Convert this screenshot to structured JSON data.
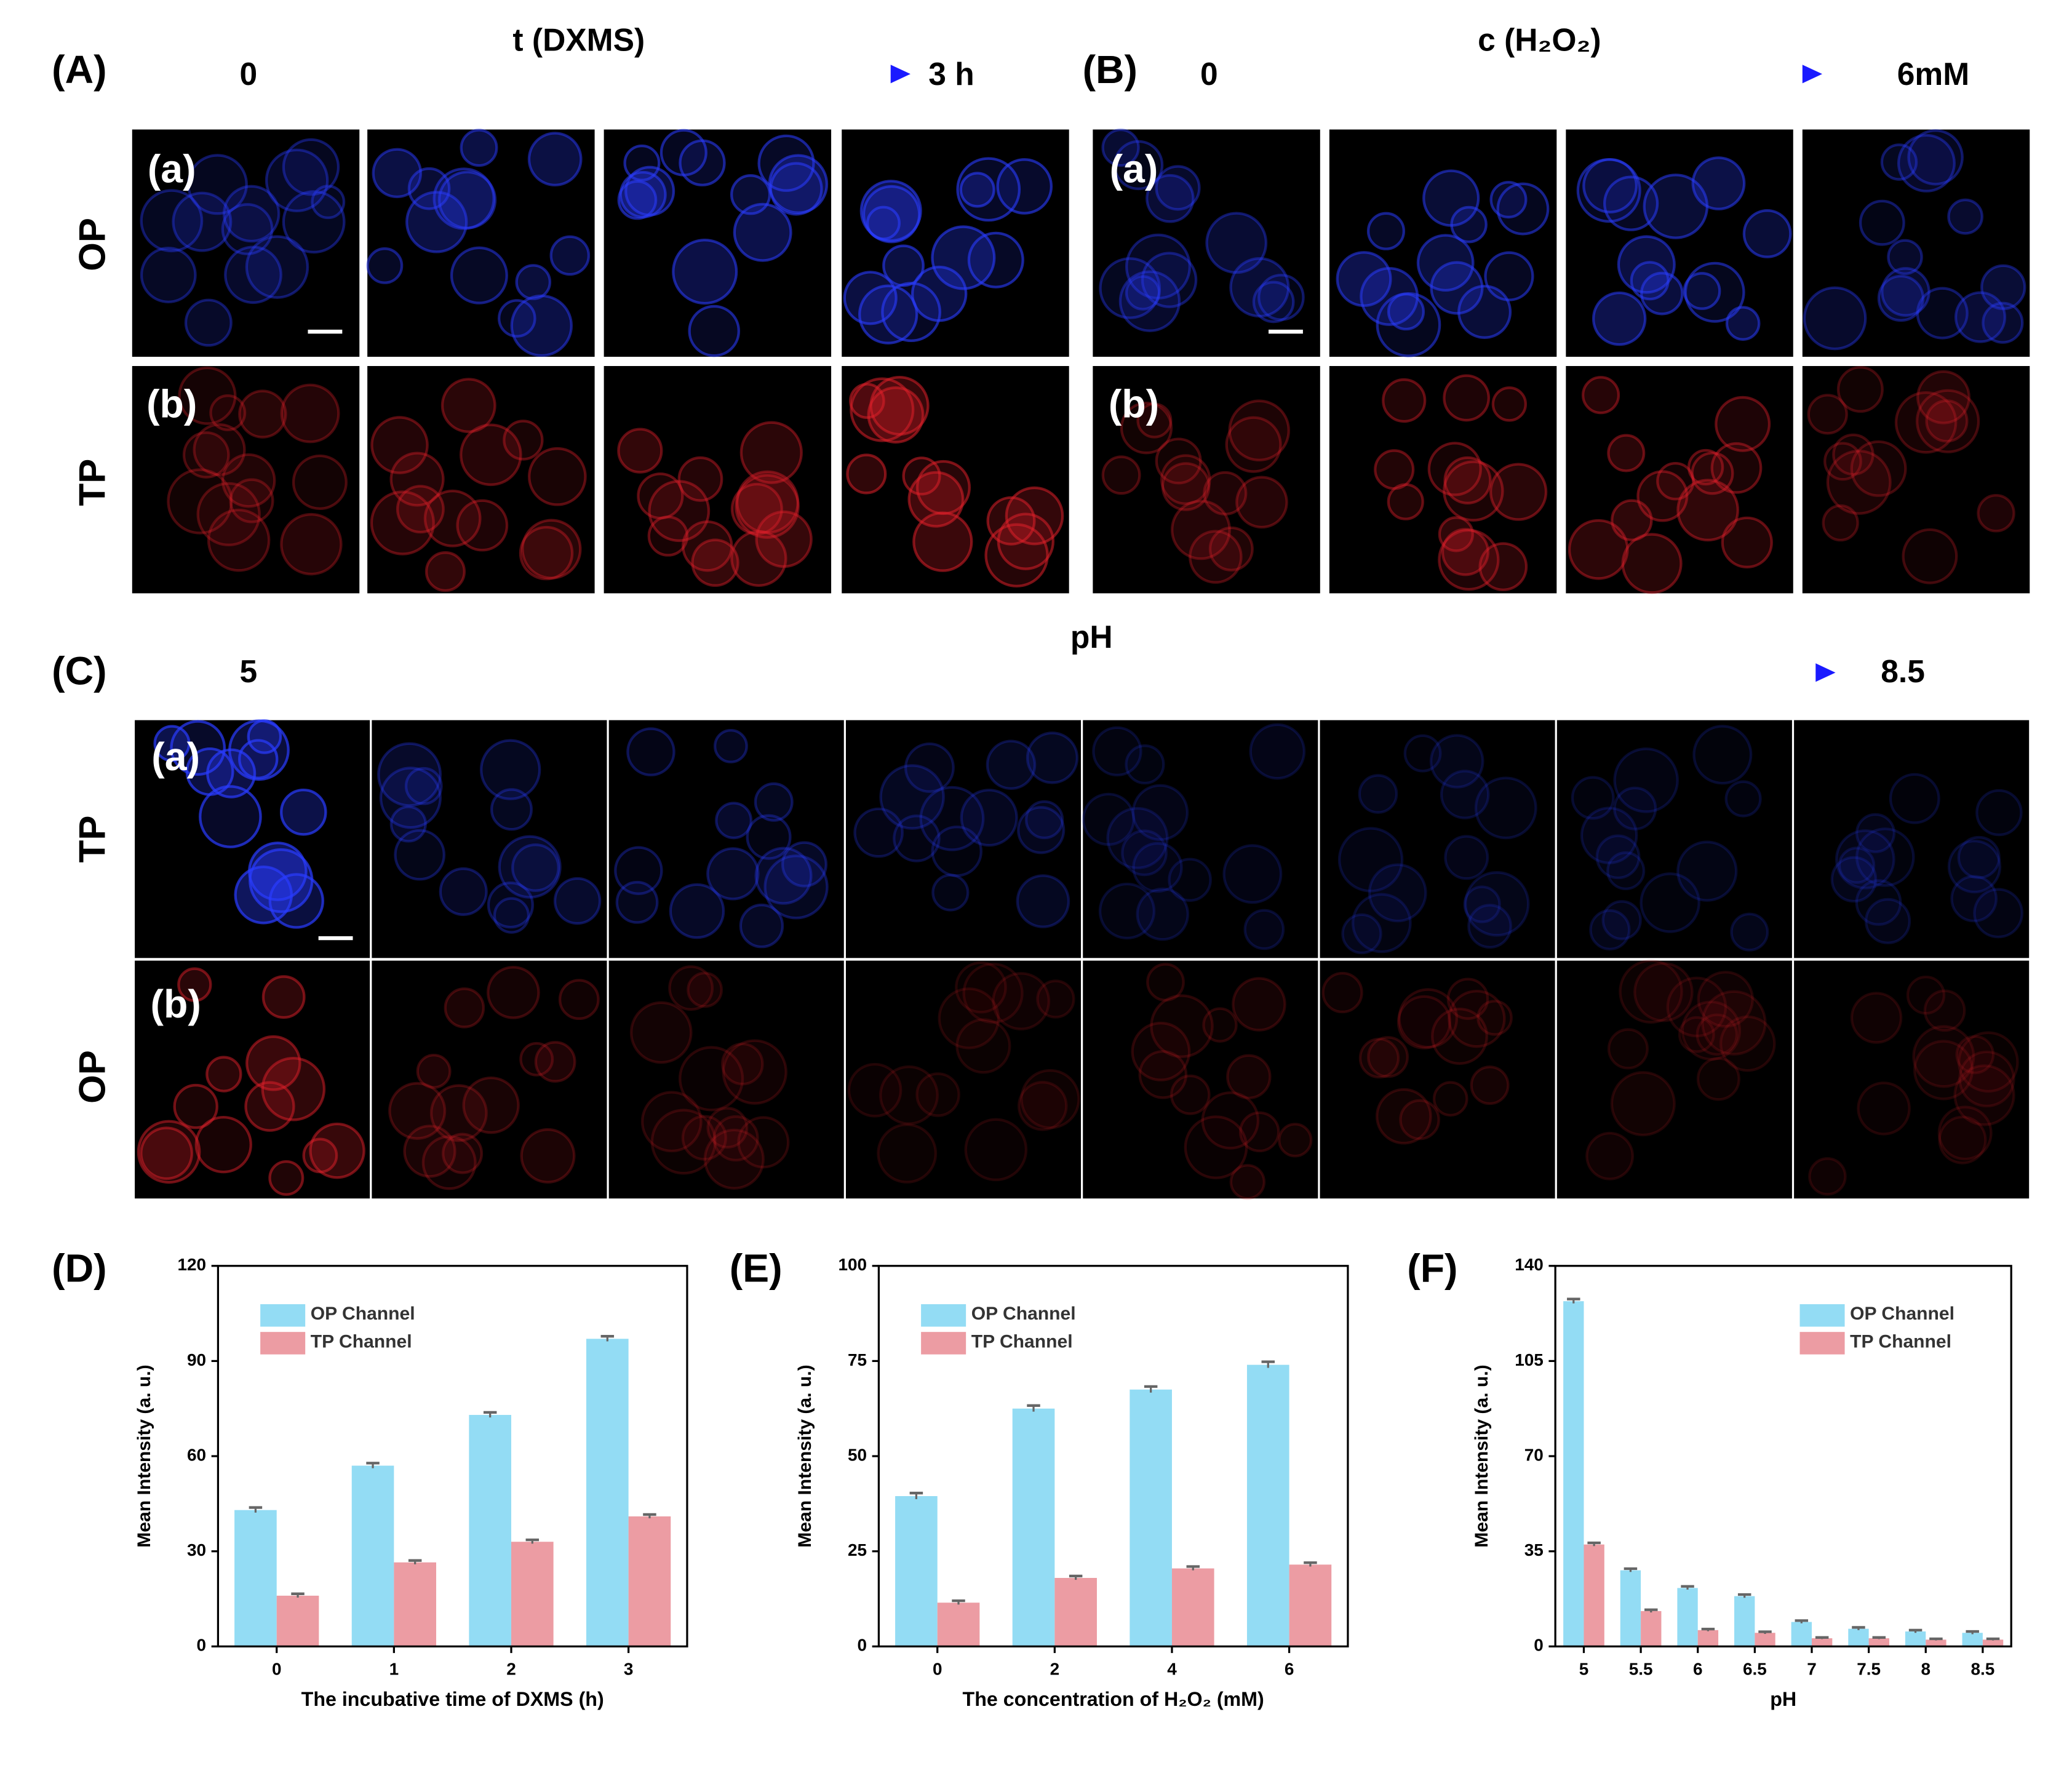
{
  "figure": {
    "panels": [
      {
        "label": "(A)",
        "start": "0",
        "variable": "t (DXMS)",
        "end": "3 h",
        "rows": [
          {
            "label": "(a)",
            "channel": "OP"
          },
          {
            "label": "(b)",
            "channel": "TP"
          }
        ]
      },
      {
        "label": "(B)",
        "start": "0",
        "variable": "c (H₂O₂)",
        "end": "6mM",
        "rows": [
          {
            "label": "(a)",
            "channel": "OP"
          },
          {
            "label": "(b)",
            "channel": "TP"
          }
        ]
      },
      {
        "label": "(C)",
        "start": "5",
        "variable": "pH",
        "end": "8.5",
        "rows": [
          {
            "label": "(a)",
            "channel": "TP"
          },
          {
            "label": "(b)",
            "channel": "OP"
          }
        ]
      }
    ]
  },
  "chart_data": [
    {
      "type": "bar",
      "panel_label": "(D)",
      "x_label": "The incubative time of DXMS (h)",
      "y_label": "Mean Intensity (a. u.)",
      "categories": [
        "0",
        "1",
        "2",
        "3"
      ],
      "series": [
        {
          "name": "OP Channel",
          "color": "#93dcf4",
          "values": [
            43,
            57,
            73,
            97
          ],
          "errors": [
            0.8,
            0.8,
            0.8,
            0.8
          ]
        },
        {
          "name": "TP Channel",
          "color": "#ec9ca3",
          "values": [
            16,
            26.5,
            33,
            41
          ],
          "errors": [
            0.6,
            0.6,
            0.6,
            0.6
          ]
        }
      ],
      "ylim": [
        0,
        120
      ],
      "yticks": [
        0,
        30,
        60,
        90,
        120
      ],
      "legend": "upper left"
    },
    {
      "type": "bar",
      "panel_label": "(E)",
      "x_label": "The concentration of H₂O₂ (mM)",
      "y_label": "Mean Intensity (a. u.)",
      "categories": [
        "0",
        "2",
        "4",
        "6"
      ],
      "series": [
        {
          "name": "OP Channel",
          "color": "#93dcf4",
          "values": [
            39.5,
            62.5,
            67.5,
            74
          ],
          "errors": [
            0.8,
            0.8,
            0.8,
            0.8
          ]
        },
        {
          "name": "TP Channel",
          "color": "#ec9ca3",
          "values": [
            11.5,
            18,
            20.5,
            21.5
          ],
          "errors": [
            0.5,
            0.5,
            0.5,
            0.5
          ]
        }
      ],
      "ylim": [
        0,
        100
      ],
      "yticks": [
        0,
        25,
        50,
        75,
        100
      ],
      "legend": "upper left"
    },
    {
      "type": "bar",
      "panel_label": "(F)",
      "x_label": "pH",
      "y_label": "Mean Intensity (a. u.)",
      "categories": [
        "5",
        "5.5",
        "6",
        "6.5",
        "7",
        "7.5",
        "8",
        "8.5"
      ],
      "series": [
        {
          "name": "OP Channel",
          "color": "#93dcf4",
          "values": [
            127,
            28,
            21.5,
            18.5,
            9,
            6.5,
            5.5,
            5
          ],
          "errors": [
            0.8,
            0.6,
            0.6,
            0.6,
            0.5,
            0.5,
            0.5,
            0.5
          ]
        },
        {
          "name": "TP Channel",
          "color": "#ec9ca3",
          "values": [
            37.5,
            13,
            6,
            5,
            3,
            3,
            2.5,
            2.5
          ],
          "errors": [
            0.6,
            0.5,
            0.4,
            0.4,
            0.3,
            0.3,
            0.3,
            0.3
          ]
        }
      ],
      "ylim": [
        0,
        140
      ],
      "yticks": [
        0,
        35,
        70,
        105,
        140
      ],
      "legend": "upper right"
    }
  ]
}
